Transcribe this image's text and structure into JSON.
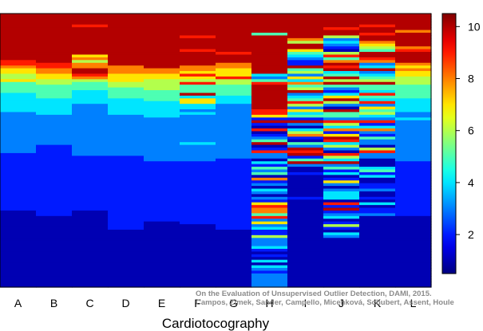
{
  "chart_data": {
    "type": "heatmap",
    "title": "",
    "xlabel": "Cardiotocography",
    "ylabel": "",
    "categories": [
      "A",
      "B",
      "C",
      "D",
      "E",
      "F",
      "G",
      "H",
      "I",
      "J",
      "K",
      "L"
    ],
    "colorbar": {
      "min": 0.5,
      "max": 10.5,
      "ticks": [
        2,
        4,
        6,
        8,
        10
      ],
      "colormap": "jet"
    },
    "rows": 100,
    "columns": [
      {
        "name": "A",
        "values": [
          10,
          10,
          10,
          10,
          10,
          10,
          10,
          10,
          10,
          10,
          10,
          10,
          10,
          10,
          10,
          10,
          10,
          9,
          9,
          8,
          7,
          7,
          6,
          6,
          7,
          5,
          5,
          5,
          5,
          4,
          4,
          4,
          4,
          4,
          4,
          4,
          3,
          3,
          3,
          3,
          3,
          3,
          3,
          3,
          3,
          3,
          3,
          3,
          3,
          3,
          3,
          2,
          2,
          2,
          2,
          2,
          2,
          2,
          2,
          2,
          2,
          2,
          2,
          2,
          2,
          2,
          2,
          2,
          2,
          2,
          2,
          2,
          1,
          1,
          1,
          1,
          1,
          1,
          1,
          1,
          1,
          1,
          1,
          1,
          1,
          1,
          1,
          1,
          1,
          1,
          1,
          1,
          1,
          1,
          1,
          1,
          1,
          1,
          1,
          1
        ]
      },
      {
        "name": "B",
        "values": [
          10,
          10,
          10,
          10,
          10,
          10,
          10,
          10,
          10,
          10,
          10,
          10,
          10,
          10,
          10,
          10,
          10,
          10,
          9,
          9,
          8,
          8,
          7,
          7,
          6,
          6,
          5,
          5,
          5,
          5,
          5,
          4,
          4,
          4,
          4,
          4,
          4,
          3,
          3,
          3,
          3,
          3,
          3,
          3,
          3,
          3,
          3,
          3,
          2,
          2,
          2,
          2,
          2,
          2,
          2,
          2,
          2,
          2,
          2,
          2,
          2,
          2,
          2,
          2,
          2,
          2,
          2,
          2,
          2,
          2,
          2,
          2,
          2,
          2,
          1,
          1,
          1,
          1,
          1,
          1,
          1,
          1,
          1,
          1,
          1,
          1,
          1,
          1,
          1,
          1,
          1,
          1,
          1,
          1,
          1,
          1,
          1,
          1,
          1,
          1
        ]
      },
      {
        "name": "C",
        "values": [
          10,
          10,
          10,
          10,
          9,
          10,
          10,
          10,
          10,
          10,
          10,
          10,
          10,
          10,
          10,
          7,
          8,
          6,
          8,
          8,
          10,
          10,
          9,
          8,
          6,
          5,
          5,
          5,
          4,
          4,
          4,
          4,
          4,
          3,
          3,
          3,
          3,
          3,
          3,
          3,
          3,
          3,
          3,
          3,
          3,
          3,
          3,
          3,
          3,
          3,
          3,
          3,
          2,
          2,
          2,
          2,
          2,
          2,
          2,
          2,
          2,
          2,
          2,
          2,
          2,
          2,
          2,
          2,
          2,
          2,
          2,
          2,
          1,
          1,
          1,
          1,
          1,
          1,
          1,
          1,
          1,
          1,
          1,
          1,
          1,
          1,
          1,
          1,
          1,
          1,
          1,
          1,
          1,
          1,
          1,
          1,
          1,
          1,
          1,
          1
        ]
      },
      {
        "name": "D",
        "values": [
          10,
          10,
          10,
          10,
          10,
          10,
          10,
          10,
          10,
          10,
          10,
          10,
          10,
          10,
          10,
          10,
          10,
          10,
          10,
          8,
          8,
          8,
          7,
          7,
          7,
          6,
          6,
          5,
          5,
          5,
          5,
          4,
          4,
          4,
          4,
          4,
          4,
          3,
          3,
          3,
          3,
          3,
          3,
          3,
          3,
          3,
          3,
          3,
          3,
          3,
          3,
          3,
          2,
          2,
          2,
          2,
          2,
          2,
          2,
          2,
          2,
          2,
          2,
          2,
          2,
          2,
          2,
          2,
          2,
          2,
          2,
          2,
          2,
          2,
          2,
          2,
          2,
          2,
          2,
          1,
          1,
          1,
          1,
          1,
          1,
          1,
          1,
          1,
          1,
          1,
          1,
          1,
          1,
          1,
          1,
          1,
          1,
          1,
          1,
          1
        ]
      },
      {
        "name": "E",
        "values": [
          10,
          10,
          10,
          10,
          10,
          10,
          10,
          10,
          10,
          10,
          10,
          10,
          10,
          10,
          10,
          10,
          10,
          10,
          10,
          10,
          8,
          8,
          7,
          7,
          6,
          6,
          6,
          6,
          5,
          5,
          5,
          5,
          4,
          4,
          4,
          4,
          4,
          4,
          3,
          3,
          3,
          3,
          3,
          3,
          3,
          3,
          3,
          3,
          3,
          3,
          3,
          3,
          3,
          3,
          2,
          2,
          2,
          2,
          2,
          2,
          2,
          2,
          2,
          2,
          2,
          2,
          2,
          2,
          2,
          2,
          2,
          2,
          2,
          2,
          2,
          2,
          1,
          1,
          1,
          1,
          1,
          1,
          1,
          1,
          1,
          1,
          1,
          1,
          1,
          1,
          1,
          1,
          1,
          1,
          1,
          1,
          1,
          1,
          1,
          1
        ]
      },
      {
        "name": "F",
        "values": [
          10,
          10,
          10,
          10,
          10,
          10,
          10,
          10,
          9,
          10,
          10,
          10,
          10,
          9,
          10,
          10,
          10,
          10,
          10,
          8,
          8,
          7,
          9,
          7,
          6,
          9,
          5,
          5,
          5,
          10,
          4,
          7,
          7,
          4,
          4,
          3,
          4,
          3,
          3,
          3,
          3,
          3,
          3,
          3,
          3,
          3,
          3,
          4,
          3,
          3,
          3,
          3,
          3,
          3,
          2,
          2,
          2,
          2,
          2,
          2,
          2,
          2,
          2,
          2,
          2,
          2,
          2,
          2,
          2,
          2,
          2,
          2,
          2,
          2,
          2,
          2,
          2,
          1,
          1,
          1,
          1,
          1,
          1,
          1,
          1,
          1,
          1,
          1,
          1,
          1,
          1,
          1,
          1,
          1,
          1,
          1,
          1,
          1,
          1,
          1
        ]
      },
      {
        "name": "G",
        "values": [
          10,
          10,
          10,
          10,
          10,
          10,
          10,
          10,
          10,
          10,
          10,
          10,
          10,
          10,
          9,
          10,
          10,
          10,
          8,
          8,
          7,
          7,
          7,
          9,
          6,
          6,
          5,
          5,
          5,
          5,
          4,
          4,
          4,
          3,
          3,
          3,
          3,
          3,
          3,
          3,
          3,
          3,
          3,
          3,
          3,
          3,
          3,
          3,
          3,
          3,
          3,
          3,
          3,
          2,
          2,
          2,
          2,
          2,
          2,
          2,
          2,
          2,
          2,
          2,
          2,
          2,
          2,
          2,
          2,
          2,
          2,
          2,
          2,
          2,
          2,
          2,
          2,
          2,
          2,
          1,
          1,
          1,
          1,
          1,
          1,
          1,
          1,
          1,
          1,
          1,
          1,
          1,
          1,
          1,
          1,
          1,
          1,
          1,
          1,
          1
        ]
      },
      {
        "name": "H",
        "values": [
          10,
          10,
          10,
          10,
          10,
          10,
          10,
          5,
          10,
          10,
          10,
          10,
          10,
          10,
          10,
          10,
          10,
          10,
          10,
          10,
          10,
          10,
          4,
          3,
          5,
          9,
          10,
          10,
          10,
          10,
          10,
          10,
          10,
          10,
          10,
          9,
          9,
          7,
          2,
          10,
          2,
          1,
          9,
          1,
          2,
          3,
          5,
          10,
          1,
          2,
          9,
          3,
          3,
          1,
          4,
          2,
          5,
          3,
          5,
          1,
          8,
          2,
          3,
          1,
          4,
          3,
          1,
          3,
          2,
          7,
          9,
          8,
          8,
          5,
          9,
          3,
          7,
          3,
          4,
          2,
          2,
          6,
          3,
          3,
          3,
          4,
          2,
          1,
          2,
          1,
          4,
          1,
          4,
          3,
          2,
          3,
          3,
          3,
          3,
          3
        ]
      },
      {
        "name": "I",
        "values": [
          10,
          10,
          10,
          10,
          10,
          10,
          10,
          10,
          10,
          8,
          6,
          10,
          10,
          7,
          5,
          4,
          3,
          2,
          2,
          10,
          5,
          6,
          3,
          7,
          4,
          8,
          5,
          6,
          10,
          3,
          4,
          5,
          9,
          6,
          3,
          7,
          4,
          5,
          2,
          10,
          3,
          1,
          4,
          6,
          8,
          2,
          1,
          5,
          3,
          10,
          9,
          10,
          2,
          5,
          10,
          3,
          1,
          1,
          2,
          1,
          1,
          1,
          1,
          1,
          1,
          1,
          1,
          2,
          1,
          1,
          1,
          1,
          1,
          1,
          1,
          1,
          1,
          1,
          1,
          1,
          1,
          1,
          1,
          1,
          1,
          1,
          1,
          1,
          1,
          1,
          1,
          1,
          1,
          1,
          1,
          1,
          1,
          1,
          1,
          1
        ]
      },
      {
        "name": "J",
        "values": [
          10,
          10,
          10,
          10,
          10,
          9,
          10,
          10,
          6,
          3,
          4,
          3,
          2,
          1,
          6,
          9,
          5,
          8,
          10,
          9,
          10,
          4,
          5,
          10,
          6,
          10,
          5,
          3,
          2,
          4,
          7,
          10,
          6,
          3,
          1,
          10,
          5,
          5,
          3,
          9,
          6,
          4,
          8,
          2,
          7,
          10,
          9,
          4,
          6,
          3,
          1,
          9,
          6,
          4,
          10,
          3,
          5,
          2,
          4,
          1,
          2,
          7,
          3,
          1,
          3,
          4,
          4,
          4,
          1,
          9,
          2,
          10,
          2,
          3,
          4,
          1,
          2,
          6,
          2,
          1,
          4,
          3,
          1,
          1,
          1,
          1,
          1,
          1,
          1,
          1,
          1,
          1,
          1,
          1,
          1,
          1,
          1,
          1,
          1,
          1
        ]
      },
      {
        "name": "K",
        "values": [
          10,
          10,
          10,
          10,
          9,
          10,
          10,
          9,
          10,
          10,
          8,
          7,
          6,
          5,
          10,
          10,
          9,
          8,
          3,
          4,
          10,
          3,
          4,
          5,
          6,
          10,
          5,
          5,
          4,
          9,
          5,
          4,
          9,
          3,
          7,
          5,
          6,
          4,
          3,
          9,
          2,
          4,
          8,
          3,
          2,
          5,
          3,
          3,
          1,
          6,
          9,
          3,
          3,
          1,
          1,
          1,
          4,
          5,
          2,
          4,
          1,
          1,
          2,
          2,
          3,
          1,
          1,
          2,
          1,
          4,
          1,
          2,
          2,
          3,
          1,
          1,
          1,
          1,
          1,
          1,
          1,
          1,
          1,
          1,
          1,
          1,
          1,
          1,
          1,
          1,
          1,
          1,
          1,
          1,
          1,
          1,
          1,
          1,
          1,
          1
        ]
      },
      {
        "name": "L",
        "values": [
          10,
          10,
          10,
          10,
          10,
          10,
          8,
          10,
          10,
          10,
          10,
          10,
          8,
          9,
          10,
          10,
          10,
          10,
          8,
          7,
          8,
          7,
          7,
          6,
          6,
          6,
          5,
          5,
          5,
          5,
          5,
          4,
          4,
          4,
          4,
          4,
          3,
          3,
          4,
          3,
          3,
          3,
          3,
          3,
          3,
          3,
          3,
          3,
          3,
          3,
          3,
          3,
          3,
          3,
          2,
          2,
          2,
          2,
          2,
          2,
          2,
          2,
          2,
          2,
          2,
          2,
          2,
          2,
          2,
          2,
          2,
          2,
          2,
          2,
          1,
          1,
          1,
          1,
          1,
          1,
          1,
          1,
          1,
          1,
          1,
          1,
          1,
          1,
          1,
          1,
          1,
          1,
          1,
          1,
          1,
          1,
          1,
          1,
          1,
          1
        ]
      }
    ],
    "credit_lines": [
      "On the Evaluation of Unsupervised Outlier Detection, DAMI, 2015.",
      "Campos, Zimek, Sander, Campello, Micenková, Schubert, Assent, Houle"
    ]
  }
}
